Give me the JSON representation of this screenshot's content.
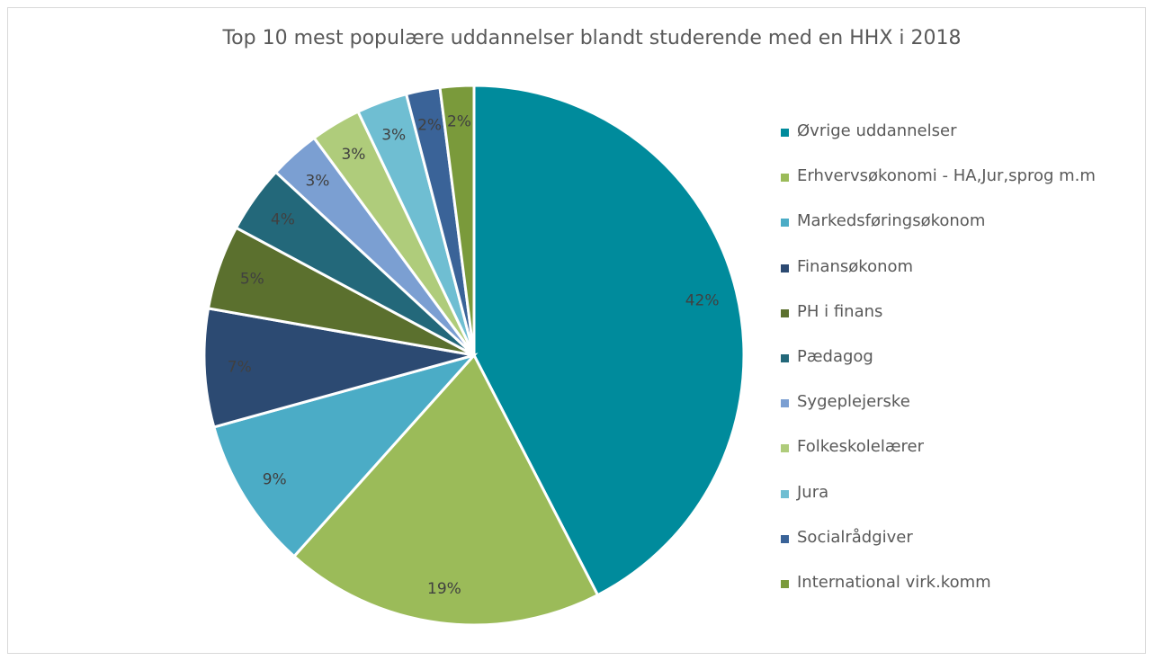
{
  "chart_data": {
    "type": "pie",
    "title": "Top 10 mest populære uddannelser blandt studerende med en HHX i 2018",
    "legend_position": "right",
    "slices": [
      {
        "name": "Øvrige uddannelser",
        "value": 42,
        "label": "42%",
        "color": "#008b9c"
      },
      {
        "name": "Erhvervsøkonomi - HA,Jur,sprog m.m",
        "value": 19,
        "label": "19%",
        "color": "#9bbb59"
      },
      {
        "name": "Markedsføringsøkonom",
        "value": 9,
        "label": "9%",
        "color": "#4bacc6"
      },
      {
        "name": "Finansøkonom",
        "value": 7,
        "label": "7%",
        "color": "#2c4a72"
      },
      {
        "name": "PH i finans",
        "value": 5,
        "label": "5%",
        "color": "#5b702e"
      },
      {
        "name": "Pædagog",
        "value": 4,
        "label": "4%",
        "color": "#23687a"
      },
      {
        "name": "Sygeplejerske",
        "value": 3,
        "label": "3%",
        "color": "#7b9fd2"
      },
      {
        "name": "Folkeskolelærer",
        "value": 3,
        "label": "3%",
        "color": "#afcc7b"
      },
      {
        "name": "Jura",
        "value": 3,
        "label": "3%",
        "color": "#6fbed2"
      },
      {
        "name": "Socialrådgiver",
        "value": 2,
        "label": "2%",
        "color": "#3a6398"
      },
      {
        "name": "International virk.komm",
        "value": 2,
        "label": "2%",
        "color": "#7a9a3b"
      }
    ]
  }
}
